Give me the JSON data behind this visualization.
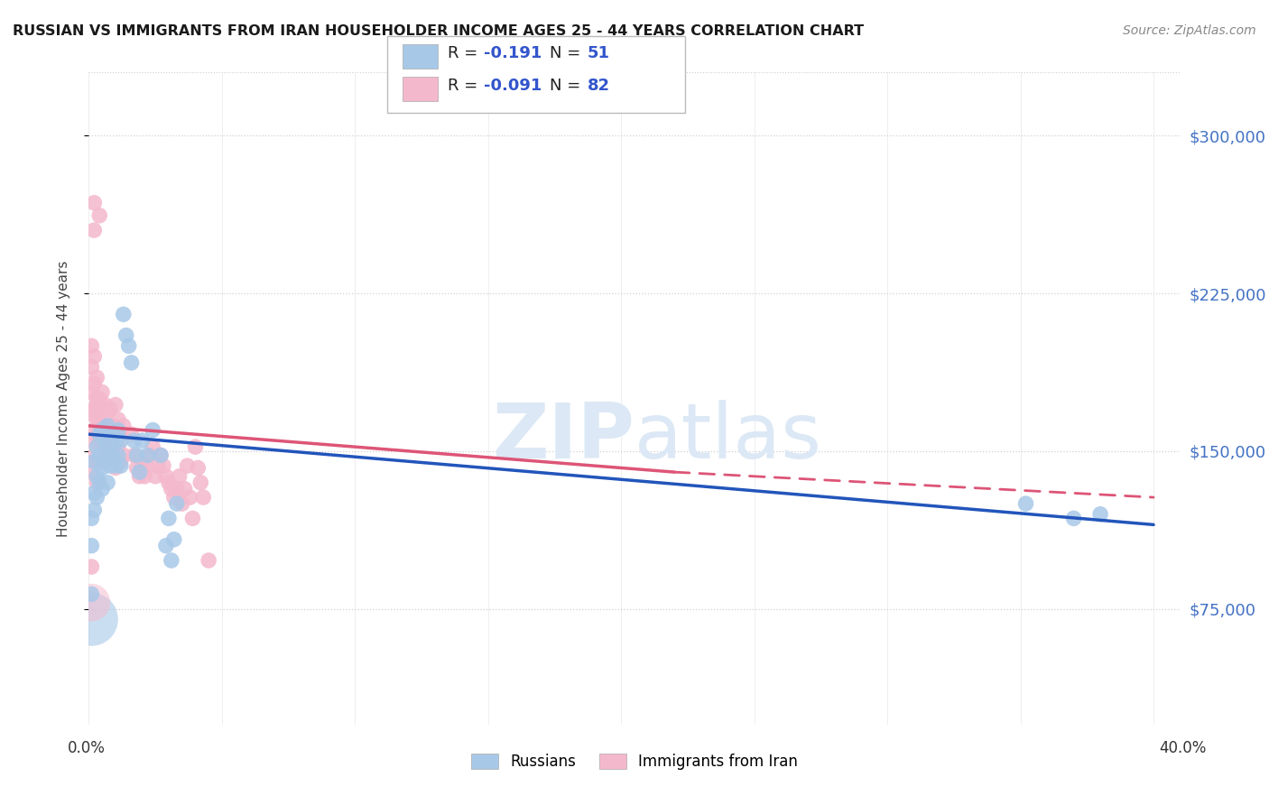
{
  "title": "RUSSIAN VS IMMIGRANTS FROM IRAN HOUSEHOLDER INCOME AGES 25 - 44 YEARS CORRELATION CHART",
  "source": "Source: ZipAtlas.com",
  "ylabel": "Householder Income Ages 25 - 44 years",
  "ytick_labels": [
    "$75,000",
    "$150,000",
    "$225,000",
    "$300,000"
  ],
  "ytick_values": [
    75000,
    150000,
    225000,
    300000
  ],
  "ylim": [
    20000,
    330000
  ],
  "xlim": [
    0.0,
    0.41
  ],
  "background_color": "#ffffff",
  "grid_color": "#d0d0d0",
  "russian_color": "#a8c8e8",
  "iran_color": "#f4b8cc",
  "russian_line_color": "#2255bb",
  "iran_line_color": "#dd5577",
  "watermark_color": "#dce8f5",
  "russian_r": -0.191,
  "russian_n": 51,
  "iran_r": -0.091,
  "iran_n": 82,
  "russian_scatter": [
    [
      0.001,
      82000
    ],
    [
      0.001,
      105000
    ],
    [
      0.001,
      118000
    ],
    [
      0.002,
      130000
    ],
    [
      0.002,
      145000
    ],
    [
      0.002,
      122000
    ],
    [
      0.003,
      138000
    ],
    [
      0.003,
      152000
    ],
    [
      0.003,
      128000
    ],
    [
      0.004,
      148000
    ],
    [
      0.004,
      158000
    ],
    [
      0.004,
      135000
    ],
    [
      0.005,
      160000
    ],
    [
      0.005,
      142000
    ],
    [
      0.005,
      132000
    ],
    [
      0.006,
      155000
    ],
    [
      0.006,
      145000
    ],
    [
      0.006,
      158000
    ],
    [
      0.007,
      162000
    ],
    [
      0.007,
      148000
    ],
    [
      0.007,
      135000
    ],
    [
      0.008,
      152000
    ],
    [
      0.008,
      143000
    ],
    [
      0.009,
      158000
    ],
    [
      0.009,
      148000
    ],
    [
      0.01,
      155000
    ],
    [
      0.01,
      143000
    ],
    [
      0.011,
      160000
    ],
    [
      0.011,
      148000
    ],
    [
      0.012,
      155000
    ],
    [
      0.012,
      143000
    ],
    [
      0.013,
      215000
    ],
    [
      0.014,
      205000
    ],
    [
      0.015,
      200000
    ],
    [
      0.016,
      192000
    ],
    [
      0.017,
      155000
    ],
    [
      0.018,
      148000
    ],
    [
      0.019,
      140000
    ],
    [
      0.02,
      155000
    ],
    [
      0.022,
      148000
    ],
    [
      0.024,
      160000
    ],
    [
      0.027,
      148000
    ],
    [
      0.029,
      105000
    ],
    [
      0.03,
      118000
    ],
    [
      0.031,
      98000
    ],
    [
      0.032,
      108000
    ],
    [
      0.033,
      125000
    ],
    [
      0.352,
      125000
    ],
    [
      0.37,
      118000
    ],
    [
      0.38,
      120000
    ]
  ],
  "iran_scatter": [
    [
      0.001,
      95000
    ],
    [
      0.001,
      140000
    ],
    [
      0.001,
      155000
    ],
    [
      0.001,
      168000
    ],
    [
      0.001,
      178000
    ],
    [
      0.001,
      190000
    ],
    [
      0.001,
      200000
    ],
    [
      0.002,
      160000
    ],
    [
      0.002,
      148000
    ],
    [
      0.002,
      170000
    ],
    [
      0.002,
      182000
    ],
    [
      0.002,
      195000
    ],
    [
      0.003,
      172000
    ],
    [
      0.003,
      185000
    ],
    [
      0.003,
      158000
    ],
    [
      0.003,
      145000
    ],
    [
      0.003,
      135000
    ],
    [
      0.003,
      165000
    ],
    [
      0.003,
      175000
    ],
    [
      0.004,
      168000
    ],
    [
      0.004,
      155000
    ],
    [
      0.004,
      175000
    ],
    [
      0.004,
      145000
    ],
    [
      0.004,
      162000
    ],
    [
      0.005,
      178000
    ],
    [
      0.005,
      162000
    ],
    [
      0.005,
      148000
    ],
    [
      0.005,
      168000
    ],
    [
      0.005,
      155000
    ],
    [
      0.006,
      172000
    ],
    [
      0.006,
      158000
    ],
    [
      0.006,
      145000
    ],
    [
      0.007,
      168000
    ],
    [
      0.007,
      152000
    ],
    [
      0.007,
      162000
    ],
    [
      0.008,
      170000
    ],
    [
      0.008,
      155000
    ],
    [
      0.008,
      145000
    ],
    [
      0.009,
      162000
    ],
    [
      0.009,
      148000
    ],
    [
      0.01,
      172000
    ],
    [
      0.01,
      158000
    ],
    [
      0.01,
      142000
    ],
    [
      0.011,
      165000
    ],
    [
      0.011,
      152000
    ],
    [
      0.012,
      158000
    ],
    [
      0.012,
      145000
    ],
    [
      0.013,
      162000
    ],
    [
      0.013,
      148000
    ],
    [
      0.002,
      268000
    ],
    [
      0.002,
      255000
    ],
    [
      0.004,
      262000
    ],
    [
      0.016,
      158000
    ],
    [
      0.017,
      148000
    ],
    [
      0.018,
      142000
    ],
    [
      0.019,
      138000
    ],
    [
      0.02,
      143000
    ],
    [
      0.021,
      138000
    ],
    [
      0.022,
      143000
    ],
    [
      0.023,
      148000
    ],
    [
      0.024,
      152000
    ],
    [
      0.025,
      138000
    ],
    [
      0.026,
      143000
    ],
    [
      0.027,
      148000
    ],
    [
      0.028,
      143000
    ],
    [
      0.029,
      138000
    ],
    [
      0.03,
      135000
    ],
    [
      0.031,
      132000
    ],
    [
      0.032,
      128000
    ],
    [
      0.033,
      132000
    ],
    [
      0.034,
      138000
    ],
    [
      0.035,
      125000
    ],
    [
      0.036,
      132000
    ],
    [
      0.037,
      143000
    ],
    [
      0.038,
      128000
    ],
    [
      0.039,
      118000
    ],
    [
      0.04,
      152000
    ],
    [
      0.041,
      142000
    ],
    [
      0.042,
      135000
    ],
    [
      0.043,
      128000
    ],
    [
      0.045,
      98000
    ]
  ]
}
